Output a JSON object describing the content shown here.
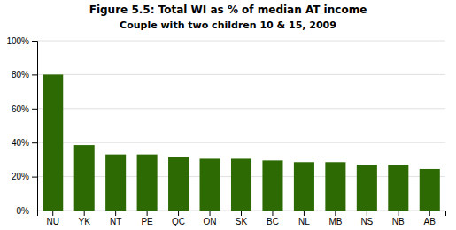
{
  "chart_data": {
    "type": "bar",
    "title": "Figure 5.5: Total WI as % of median AT income",
    "subtitle": "Couple with two children 10 & 15, 2009",
    "categories": [
      "NU",
      "YK",
      "NT",
      "PE",
      "QC",
      "ON",
      "SK",
      "BC",
      "NL",
      "MB",
      "NS",
      "NB",
      "AB"
    ],
    "values": [
      80,
      38.5,
      33,
      33,
      31.5,
      30.5,
      30.5,
      29.5,
      28.5,
      28.5,
      27,
      27,
      24.5
    ],
    "color": "#2d6a04",
    "ylim": [
      0,
      100
    ],
    "yticks": [
      {
        "value": 0,
        "label": "0%"
      },
      {
        "value": 20,
        "label": "20%"
      },
      {
        "value": 40,
        "label": "40%"
      },
      {
        "value": 60,
        "label": "60%"
      },
      {
        "value": 80,
        "label": "80%"
      },
      {
        "value": 100,
        "label": "100%"
      }
    ],
    "grid": true
  }
}
